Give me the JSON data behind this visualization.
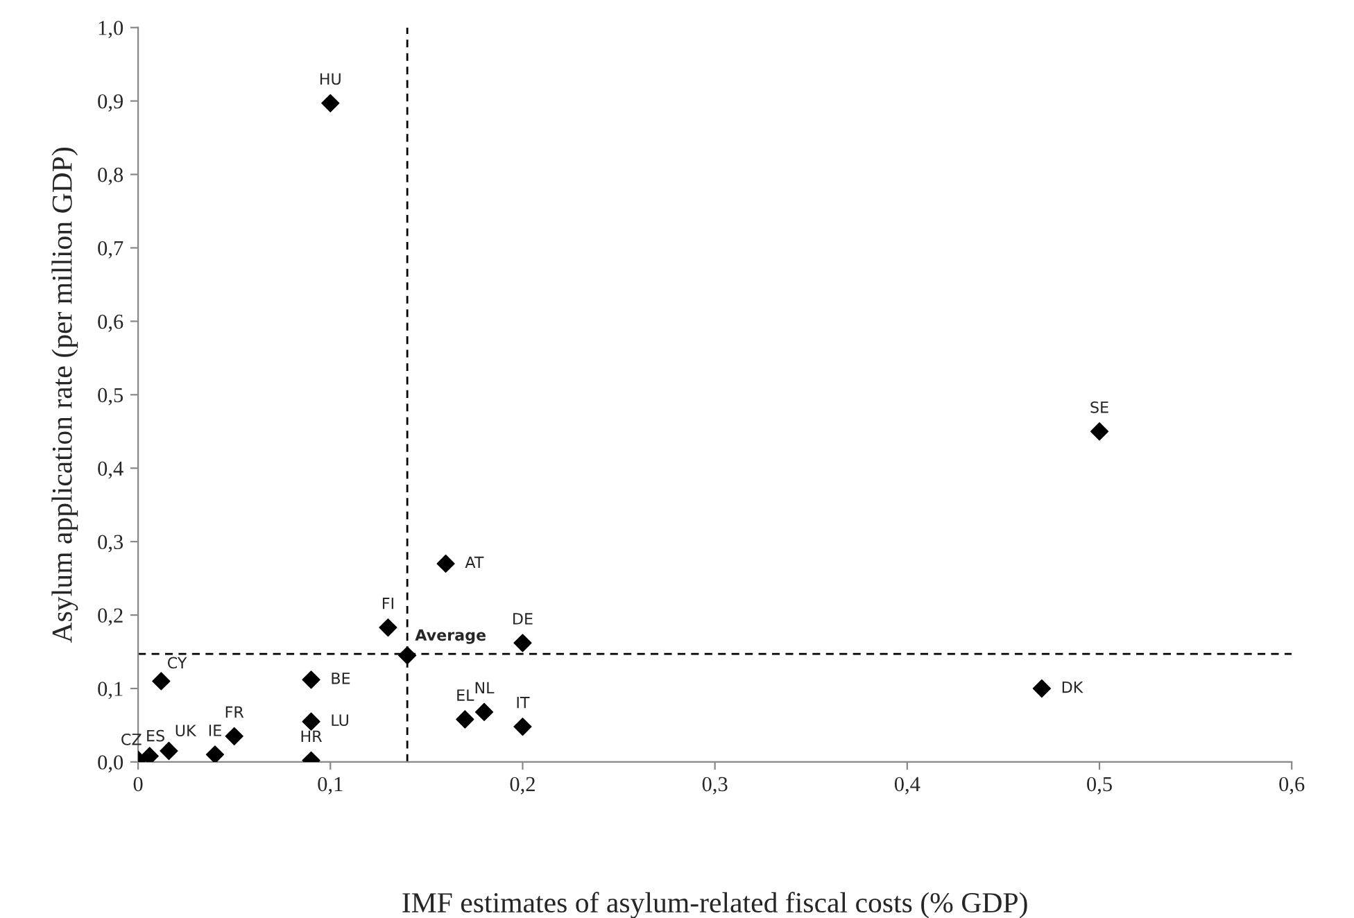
{
  "chart_data": {
    "type": "scatter",
    "xlabel": "IMF estimates of asylum-related fiscal costs (% GDP)",
    "ylabel": "Asylum application rate (per million GDP)",
    "x": [
      0,
      0.006,
      0.016,
      0.04,
      0.05,
      0.012,
      0.09,
      0.09,
      0.09,
      0.13,
      0.14,
      0.16,
      0.2,
      0.17,
      0.18,
      0.2,
      0.1,
      0.5,
      0.47
    ],
    "series": [
      {
        "color": "#000000",
        "values": [
          0.003,
          0.008,
          0.015,
          0.01,
          0.035,
          0.11,
          0.002,
          0.112,
          0.055,
          0.183,
          0.145,
          0.27,
          0.162,
          0.058,
          0.068,
          0.048,
          0.897,
          0.45,
          0.1
        ]
      }
    ],
    "marker": "diamond",
    "xlim": [
      0,
      0.6
    ],
    "ylim": [
      0,
      1.0
    ],
    "xticks": [
      0,
      {
        "value": 0.1,
        "label": "0,1"
      },
      {
        "value": 0.2,
        "label": "0,2"
      },
      {
        "value": 0.3,
        "label": "0,3"
      },
      {
        "value": 0.4,
        "label": "0,4"
      },
      {
        "value": 0.5,
        "label": "0,5"
      },
      {
        "value": 0.6,
        "label": "0,6"
      }
    ],
    "yticks": [
      {
        "value": 0,
        "label": "0,0"
      },
      {
        "value": 0.1,
        "label": "0,1"
      },
      {
        "value": 0.2,
        "label": "0,2"
      },
      {
        "value": 0.3,
        "label": "0,3"
      },
      {
        "value": 0.4,
        "label": "0,4"
      },
      {
        "value": 0.5,
        "label": "0,5"
      },
      {
        "value": 0.6,
        "label": "0,6"
      },
      {
        "value": 0.7,
        "label": "0,7"
      },
      {
        "value": 0.8,
        "label": "0,8"
      },
      {
        "value": 0.9,
        "label": "0,9"
      },
      {
        "value": 1.0,
        "label": "1,0"
      }
    ],
    "ref_lines": [
      {
        "axis": "x",
        "value": 0.14,
        "line_style": "dashed",
        "color": "#000000"
      },
      {
        "axis": "y",
        "value": 0.147,
        "line_style": "dashed",
        "color": "#000000"
      }
    ],
    "annotations": [
      {
        "text": "CZ",
        "x": 0,
        "y": 0.003
      },
      {
        "text": "ES",
        "x": 0.006,
        "y": 0.008
      },
      {
        "text": "UK",
        "x": 0.016,
        "y": 0.015
      },
      {
        "text": "IE",
        "x": 0.04,
        "y": 0.01
      },
      {
        "text": "FR",
        "x": 0.05,
        "y": 0.035
      },
      {
        "text": "CY",
        "x": 0.012,
        "y": 0.11
      },
      {
        "text": "HR",
        "x": 0.09,
        "y": 0.002
      },
      {
        "text": "BE",
        "x": 0.09,
        "y": 0.112
      },
      {
        "text": "LU",
        "x": 0.09,
        "y": 0.055
      },
      {
        "text": "FI",
        "x": 0.13,
        "y": 0.183
      },
      {
        "text": "Average",
        "x": 0.14,
        "y": 0.145
      },
      {
        "text": "AT",
        "x": 0.16,
        "y": 0.27
      },
      {
        "text": "DE",
        "x": 0.2,
        "y": 0.162
      },
      {
        "text": "EL",
        "x": 0.17,
        "y": 0.058
      },
      {
        "text": "NL",
        "x": 0.18,
        "y": 0.068
      },
      {
        "text": "IT",
        "x": 0.2,
        "y": 0.048
      },
      {
        "text": "HU",
        "x": 0.1,
        "y": 0.897
      },
      {
        "text": "SE",
        "x": 0.5,
        "y": 0.45
      },
      {
        "text": "DK",
        "x": 0.47,
        "y": 0.1
      }
    ],
    "grid": false
  }
}
